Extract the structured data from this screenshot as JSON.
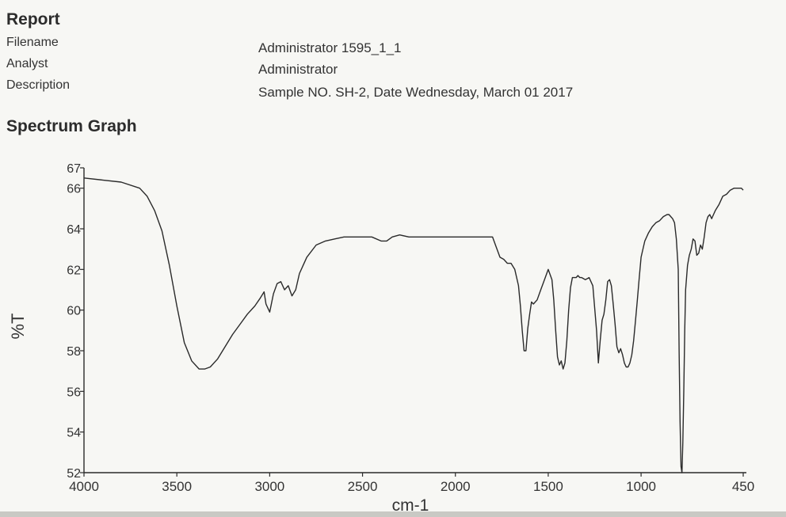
{
  "report": {
    "title": "Report",
    "fields": [
      {
        "label": "Filename",
        "value": "Administrator 1595_1_1"
      },
      {
        "label": "Analyst",
        "value": "Administrator"
      },
      {
        "label": "Description",
        "value": "Sample NO. SH-2, Date Wednesday, March 01 2017"
      }
    ]
  },
  "section_title": "Spectrum Graph",
  "chart_data": {
    "type": "line",
    "title": "",
    "xlabel": "cm-1",
    "ylabel": "%T",
    "xlim": [
      4000,
      450
    ],
    "ylim": [
      52,
      67
    ],
    "x_reversed": true,
    "x_ticks": [
      4000,
      3500,
      3000,
      2500,
      2000,
      1500,
      1000,
      450
    ],
    "y_ticks": [
      52,
      54,
      56,
      58,
      60,
      62,
      64,
      66,
      67
    ],
    "grid": false,
    "legend": "none",
    "line_color": "#2a2a2a",
    "series": [
      {
        "x": [
          4000,
          3900,
          3800,
          3700,
          3660,
          3620,
          3580,
          3540,
          3500,
          3460,
          3420,
          3380,
          3350,
          3320,
          3280,
          3240,
          3200,
          3160,
          3120,
          3080,
          3050,
          3030,
          3020,
          3000,
          2980,
          2960,
          2940,
          2920,
          2900,
          2880,
          2860,
          2840,
          2800,
          2750,
          2700,
          2650,
          2600,
          2550,
          2500,
          2450,
          2400,
          2370,
          2340,
          2300,
          2250,
          2200,
          2150,
          2100,
          2050,
          2000,
          1950,
          1900,
          1850,
          1800,
          1780,
          1760,
          1740,
          1720,
          1700,
          1680,
          1660,
          1650,
          1640,
          1630,
          1620,
          1610,
          1600,
          1590,
          1580,
          1560,
          1540,
          1520,
          1500,
          1480,
          1470,
          1460,
          1450,
          1440,
          1430,
          1420,
          1410,
          1400,
          1390,
          1380,
          1370,
          1360,
          1350,
          1340,
          1330,
          1320,
          1300,
          1280,
          1260,
          1240,
          1230,
          1220,
          1210,
          1200,
          1190,
          1180,
          1170,
          1160,
          1150,
          1140,
          1130,
          1120,
          1110,
          1100,
          1090,
          1080,
          1070,
          1060,
          1050,
          1040,
          1030,
          1020,
          1010,
          1000,
          980,
          960,
          940,
          920,
          900,
          880,
          860,
          850,
          840,
          830,
          820,
          810,
          800,
          795,
          790,
          785,
          780,
          775,
          770,
          765,
          760,
          750,
          740,
          730,
          720,
          710,
          700,
          690,
          680,
          670,
          660,
          650,
          640,
          630,
          620,
          610,
          600,
          580,
          560,
          540,
          520,
          500,
          480,
          460,
          450
        ],
        "y": [
          66.5,
          66.4,
          66.3,
          66.0,
          65.6,
          64.9,
          63.9,
          62.2,
          60.2,
          58.4,
          57.5,
          57.1,
          57.1,
          57.2,
          57.6,
          58.2,
          58.8,
          59.3,
          59.8,
          60.2,
          60.6,
          60.9,
          60.3,
          59.9,
          60.8,
          61.3,
          61.4,
          61.0,
          61.2,
          60.7,
          61.0,
          61.8,
          62.6,
          63.2,
          63.4,
          63.5,
          63.6,
          63.6,
          63.6,
          63.6,
          63.4,
          63.4,
          63.6,
          63.7,
          63.6,
          63.6,
          63.6,
          63.6,
          63.6,
          63.6,
          63.6,
          63.6,
          63.6,
          63.6,
          63.1,
          62.6,
          62.5,
          62.3,
          62.3,
          62.0,
          61.2,
          60.2,
          59.0,
          58.0,
          58.0,
          59.1,
          59.8,
          60.4,
          60.3,
          60.5,
          61.0,
          61.5,
          62.0,
          61.5,
          60.5,
          59.0,
          57.7,
          57.3,
          57.5,
          57.1,
          57.4,
          58.5,
          60.0,
          61.1,
          61.6,
          61.6,
          61.6,
          61.7,
          61.6,
          61.6,
          61.5,
          61.6,
          61.2,
          59.0,
          57.4,
          58.5,
          59.5,
          59.8,
          60.5,
          61.4,
          61.5,
          61.2,
          60.3,
          59.3,
          58.2,
          57.9,
          58.1,
          57.8,
          57.4,
          57.2,
          57.2,
          57.4,
          57.8,
          58.5,
          59.5,
          60.5,
          61.6,
          62.6,
          63.4,
          63.8,
          64.1,
          64.3,
          64.4,
          64.6,
          64.7,
          64.7,
          64.6,
          64.5,
          64.3,
          63.5,
          62.0,
          58.0,
          54.5,
          52.3,
          52.0,
          53.5,
          56.0,
          59.0,
          61.0,
          62.2,
          62.7,
          63.0,
          63.5,
          63.4,
          62.7,
          62.8,
          63.2,
          63.0,
          63.6,
          64.3,
          64.6,
          64.7,
          64.5,
          64.7,
          64.9,
          65.2,
          65.6,
          65.7,
          65.9,
          66.0,
          66.0,
          66.0,
          65.9
        ]
      }
    ]
  }
}
